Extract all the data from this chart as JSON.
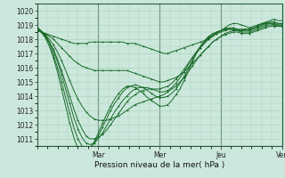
{
  "title": "",
  "xlabel": "Pression niveau de la mer( hPa )",
  "ylabel": "",
  "bg_color": "#cce8dc",
  "grid_color": "#aaccbb",
  "line_color": "#1a6b2a",
  "ylim": [
    1010.5,
    1020.5
  ],
  "xlim": [
    0,
    1
  ],
  "day_labels": [
    "Mar",
    "Mer",
    "Jeu",
    "Ven"
  ],
  "day_positions": [
    0.25,
    0.5,
    0.75,
    1.0
  ],
  "series": [
    [
      1018.6,
      1018.5,
      1018.4,
      1018.3,
      1018.2,
      1018.1,
      1018.0,
      1017.9,
      1017.8,
      1017.7,
      1017.7,
      1017.7,
      1017.7,
      1017.8,
      1017.8,
      1017.8,
      1017.8,
      1017.8,
      1017.8,
      1017.8,
      1017.8,
      1017.8,
      1017.7,
      1017.7,
      1017.7,
      1017.6,
      1017.5,
      1017.4,
      1017.3,
      1017.2,
      1017.1,
      1017.0,
      1017.0,
      1017.1,
      1017.2,
      1017.3,
      1017.4,
      1017.5,
      1017.6,
      1017.7,
      1017.8,
      1017.9,
      1018.0,
      1018.2,
      1018.4,
      1018.6,
      1018.8,
      1019.0,
      1019.1,
      1019.1,
      1019.0,
      1018.9,
      1018.8,
      1018.9,
      1019.0,
      1019.1,
      1019.1,
      1019.1,
      1019.0,
      1018.9,
      1018.9
    ],
    [
      1018.6,
      1018.5,
      1018.4,
      1018.2,
      1018.0,
      1017.7,
      1017.4,
      1017.1,
      1016.8,
      1016.5,
      1016.3,
      1016.1,
      1016.0,
      1015.9,
      1015.8,
      1015.8,
      1015.8,
      1015.8,
      1015.8,
      1015.8,
      1015.8,
      1015.8,
      1015.8,
      1015.7,
      1015.6,
      1015.5,
      1015.4,
      1015.3,
      1015.2,
      1015.1,
      1015.0,
      1015.0,
      1015.1,
      1015.2,
      1015.3,
      1015.5,
      1015.7,
      1016.0,
      1016.3,
      1016.6,
      1016.9,
      1017.2,
      1017.5,
      1017.8,
      1018.0,
      1018.2,
      1018.4,
      1018.5,
      1018.6,
      1018.6,
      1018.5,
      1018.5,
      1018.5,
      1018.6,
      1018.7,
      1018.8,
      1018.9,
      1019.0,
      1019.0,
      1019.0,
      1019.0
    ],
    [
      1018.7,
      1018.5,
      1018.3,
      1018.0,
      1017.6,
      1017.1,
      1016.5,
      1015.8,
      1015.1,
      1014.4,
      1013.8,
      1013.3,
      1012.9,
      1012.6,
      1012.4,
      1012.3,
      1012.3,
      1012.3,
      1012.4,
      1012.5,
      1012.6,
      1012.8,
      1013.0,
      1013.2,
      1013.4,
      1013.5,
      1013.6,
      1013.7,
      1013.8,
      1013.9,
      1014.0,
      1014.1,
      1014.3,
      1014.5,
      1014.7,
      1015.0,
      1015.3,
      1015.7,
      1016.1,
      1016.5,
      1016.9,
      1017.2,
      1017.5,
      1017.8,
      1018.0,
      1018.2,
      1018.3,
      1018.4,
      1018.5,
      1018.5,
      1018.4,
      1018.4,
      1018.4,
      1018.5,
      1018.6,
      1018.7,
      1018.8,
      1018.9,
      1018.9,
      1018.9,
      1018.9
    ],
    [
      1018.7,
      1018.5,
      1018.2,
      1017.8,
      1017.3,
      1016.6,
      1015.8,
      1014.9,
      1014.0,
      1013.1,
      1012.3,
      1011.7,
      1011.2,
      1011.0,
      1011.0,
      1011.1,
      1011.3,
      1011.6,
      1012.0,
      1012.4,
      1012.8,
      1013.2,
      1013.6,
      1013.9,
      1014.1,
      1014.3,
      1014.4,
      1014.5,
      1014.5,
      1014.5,
      1014.5,
      1014.6,
      1014.7,
      1014.9,
      1015.2,
      1015.5,
      1015.9,
      1016.3,
      1016.7,
      1017.1,
      1017.4,
      1017.7,
      1018.0,
      1018.2,
      1018.4,
      1018.5,
      1018.6,
      1018.7,
      1018.7,
      1018.7,
      1018.6,
      1018.6,
      1018.6,
      1018.7,
      1018.8,
      1018.9,
      1019.0,
      1019.1,
      1019.1,
      1019.0,
      1019.0
    ],
    [
      1018.8,
      1018.6,
      1018.3,
      1017.8,
      1017.2,
      1016.4,
      1015.5,
      1014.5,
      1013.5,
      1012.5,
      1011.7,
      1011.1,
      1010.7,
      1010.6,
      1010.7,
      1011.0,
      1011.4,
      1011.9,
      1012.4,
      1012.9,
      1013.3,
      1013.7,
      1014.0,
      1014.3,
      1014.5,
      1014.6,
      1014.6,
      1014.6,
      1014.5,
      1014.4,
      1014.3,
      1014.3,
      1014.4,
      1014.6,
      1014.9,
      1015.3,
      1015.7,
      1016.2,
      1016.7,
      1017.1,
      1017.5,
      1017.8,
      1018.1,
      1018.3,
      1018.5,
      1018.6,
      1018.7,
      1018.8,
      1018.8,
      1018.7,
      1018.7,
      1018.7,
      1018.7,
      1018.8,
      1018.9,
      1019.0,
      1019.1,
      1019.2,
      1019.2,
      1019.1,
      1019.1
    ],
    [
      1018.8,
      1018.6,
      1018.2,
      1017.7,
      1016.9,
      1016.0,
      1015.0,
      1013.9,
      1012.8,
      1011.8,
      1011.0,
      1010.5,
      1010.3,
      1010.4,
      1010.7,
      1011.2,
      1011.8,
      1012.4,
      1013.0,
      1013.5,
      1013.9,
      1014.3,
      1014.6,
      1014.7,
      1014.8,
      1014.7,
      1014.6,
      1014.4,
      1014.2,
      1014.0,
      1013.9,
      1013.9,
      1014.0,
      1014.2,
      1014.5,
      1014.9,
      1015.4,
      1015.9,
      1016.5,
      1017.0,
      1017.4,
      1017.8,
      1018.1,
      1018.3,
      1018.5,
      1018.6,
      1018.7,
      1018.7,
      1018.7,
      1018.6,
      1018.6,
      1018.7,
      1018.7,
      1018.8,
      1018.9,
      1019.0,
      1019.1,
      1019.2,
      1019.2,
      1019.1,
      1019.1
    ],
    [
      1018.8,
      1018.5,
      1018.1,
      1017.5,
      1016.7,
      1015.7,
      1014.5,
      1013.3,
      1012.1,
      1011.1,
      1010.3,
      1009.9,
      1010.0,
      1010.3,
      1010.8,
      1011.4,
      1012.1,
      1012.7,
      1013.3,
      1013.8,
      1014.2,
      1014.5,
      1014.7,
      1014.7,
      1014.6,
      1014.4,
      1014.2,
      1013.9,
      1013.7,
      1013.5,
      1013.3,
      1013.3,
      1013.4,
      1013.7,
      1014.1,
      1014.5,
      1015.1,
      1015.7,
      1016.4,
      1017.0,
      1017.5,
      1017.9,
      1018.2,
      1018.4,
      1018.5,
      1018.6,
      1018.7,
      1018.7,
      1018.7,
      1018.6,
      1018.6,
      1018.7,
      1018.7,
      1018.8,
      1018.9,
      1019.1,
      1019.2,
      1019.3,
      1019.4,
      1019.3,
      1019.3
    ]
  ]
}
